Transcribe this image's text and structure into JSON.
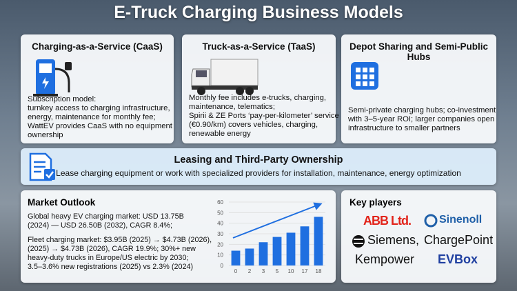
{
  "title": "E-Truck Charging Business Models",
  "cards": [
    {
      "title": "Charging-as-a-Service (CaaS)",
      "lines": [
        "Subscription model:",
        "turnkey access to charging infrastructure,",
        "energy, maintenance for monthly fee;",
        "WattEV provides CaaS with no equipment",
        "ownership"
      ]
    },
    {
      "title": "Truck-as-a-Service (TaaS)",
      "lines": [
        "Monthly fee includes e-trucks, charging,",
        "maintenance, telematics;",
        "Spirii & ZE Ports ‘pay-per-kilometer’ service",
        "(€0.90/km) covers vehicles, charging,",
        "renewable energy"
      ]
    },
    {
      "title": "Depot Sharing and Semi-Public Hubs",
      "lines": [
        "Semi-private charging hubs; co-investment",
        "with 3–5-year ROI; larger companies open",
        "infrastructure to smaller partners"
      ]
    }
  ],
  "leasing": {
    "title": "Leasing and Third-Party Ownership",
    "text": "Lease charging equipment or work with specialized providers for installation, maintenance, energy optimization"
  },
  "market": {
    "title": "Market Outlook",
    "paragraphs": [
      [
        "Global heavy EV charging market: USD 13.75B",
        "(2024)  —  USD 26.50B (2032), CAGR 8.4%;"
      ],
      [
        "Fleet charging market: $3.95B (2025) → $4.73B (2026),",
        "(2025) → $4.73B (2026), CAGR 19.9%; 30%+ new",
        "heavy-duty trucks in Europe/US electric by 2030;",
        "3.5–3.6% new registrations (2025) vs 2.3% (2024)"
      ]
    ],
    "chart": {
      "type": "bar",
      "categories": [
        "0",
        "2",
        "3",
        "5",
        "10",
        "17",
        "18"
      ],
      "values": [
        14,
        16,
        22,
        27,
        31,
        37,
        46
      ],
      "color": "#1f6fe0",
      "ylim": [
        0,
        60
      ],
      "yticks": [
        0,
        10,
        20,
        30,
        40,
        50,
        60
      ],
      "grid": true
    }
  },
  "players": {
    "title": "Key players",
    "names": [
      "ABB Ltd.",
      "Sinenoll",
      "Siemens,",
      "ChargePoint",
      "Kempower",
      "EVBox"
    ]
  }
}
